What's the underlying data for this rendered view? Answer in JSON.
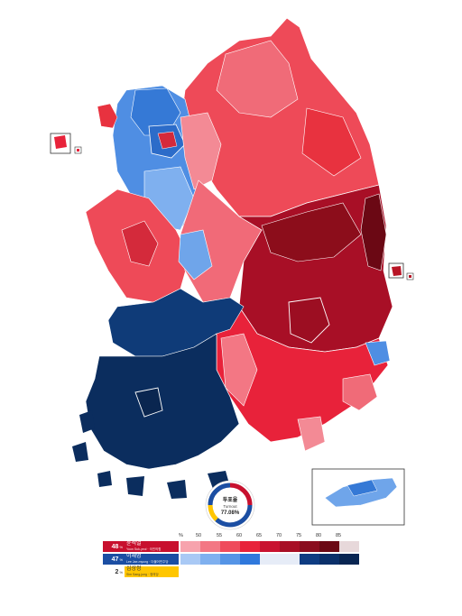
{
  "turnout": {
    "label": "투표율",
    "label_en": "Turnout",
    "value": "77.08%"
  },
  "legend": {
    "percent_symbol": "%",
    "ticks": [
      "50",
      "55",
      "60",
      "65",
      "70",
      "75",
      "80",
      "85"
    ],
    "candidates": [
      {
        "percent": "48",
        "percent_unit": "%",
        "name": "윤석열",
        "sub": "Yoon Suk-yeol · 국민의힘",
        "color": "#c8102e",
        "scale": [
          "#f7a3ad",
          "#f37784",
          "#ef4b5c",
          "#e8223a",
          "#c91230",
          "#a80f26",
          "#8a0c1e",
          "#6b0814",
          "#e7d8da"
        ]
      },
      {
        "percent": "47",
        "percent_unit": "%",
        "name": "이재명",
        "sub": "Lee Jae-myung · 더불어민주당",
        "color": "#1b4ea3",
        "scale": [
          "#a9c9f5",
          "#7fb0ef",
          "#5594e6",
          "#2f78dc",
          "#e6ecf7",
          "#e6ecf7",
          "#0e3c82",
          "#0b306a",
          "#082552"
        ]
      },
      {
        "percent": "2",
        "percent_unit": "%",
        "name": "심상정",
        "sub": "Sim Sang-jung · 정의당",
        "color": "#ffc600",
        "scale": []
      }
    ]
  },
  "map_colors": {
    "red_light": "#f16a78",
    "red_mid": "#e8323f",
    "red_dark": "#b81425",
    "red_deepest": "#8c0d1b",
    "blue_light": "#6fa5ea",
    "blue_mid": "#3579d6",
    "blue_dark": "#0f3b78",
    "blue_deepest": "#0b2d5e"
  }
}
